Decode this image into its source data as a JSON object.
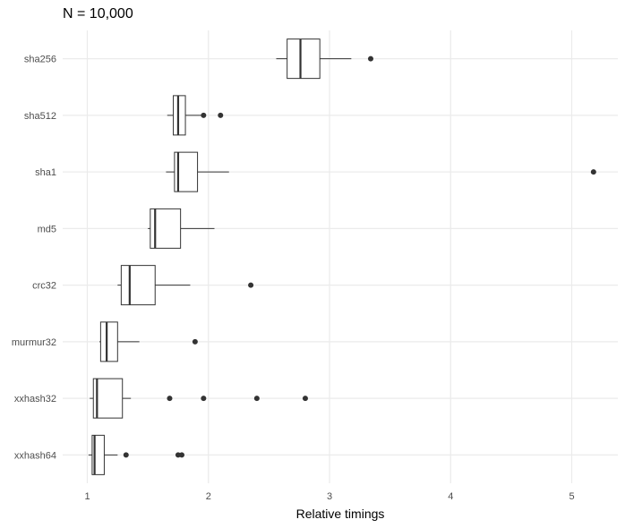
{
  "chart_data": {
    "type": "boxplot",
    "title": "N = 10,000",
    "xlabel": "Relative timings",
    "ylabel": "",
    "xlim": [
      0.75,
      5.4
    ],
    "x_ticks": [
      1,
      2,
      3,
      4,
      5
    ],
    "grid": true,
    "legend": "none",
    "box_fill": "#ffffff",
    "line_color": "#333333",
    "grid_major_color": "#ebebeb",
    "grid_minor_color": "#f4f4f4",
    "series": [
      {
        "name": "sha256",
        "whisker_low": 2.56,
        "q1": 2.65,
        "median": 2.76,
        "q3": 2.92,
        "whisker_high": 3.18,
        "outliers": [
          3.34
        ]
      },
      {
        "name": "sha512",
        "whisker_low": 1.66,
        "q1": 1.71,
        "median": 1.75,
        "q3": 1.81,
        "whisker_high": 1.95,
        "outliers": [
          1.96,
          2.1
        ]
      },
      {
        "name": "sha1",
        "whisker_low": 1.65,
        "q1": 1.72,
        "median": 1.75,
        "q3": 1.91,
        "whisker_high": 2.17,
        "outliers": [
          5.18
        ]
      },
      {
        "name": "md5",
        "whisker_low": 1.5,
        "q1": 1.52,
        "median": 1.56,
        "q3": 1.77,
        "whisker_high": 2.05,
        "outliers": []
      },
      {
        "name": "crc32",
        "whisker_low": 1.25,
        "q1": 1.28,
        "median": 1.35,
        "q3": 1.56,
        "whisker_high": 1.85,
        "outliers": [
          2.35
        ]
      },
      {
        "name": "murmur32",
        "whisker_low": 1.1,
        "q1": 1.11,
        "median": 1.16,
        "q3": 1.25,
        "whisker_high": 1.43,
        "outliers": [
          1.89
        ]
      },
      {
        "name": "xxhash32",
        "whisker_low": 1.02,
        "q1": 1.05,
        "median": 1.08,
        "q3": 1.29,
        "whisker_high": 1.36,
        "outliers": [
          1.68,
          1.96,
          2.4,
          2.8
        ]
      },
      {
        "name": "xxhash64",
        "whisker_low": 1.01,
        "q1": 1.04,
        "median": 1.06,
        "q3": 1.14,
        "whisker_high": 1.25,
        "outliers": [
          1.32,
          1.75,
          1.78
        ]
      }
    ]
  }
}
